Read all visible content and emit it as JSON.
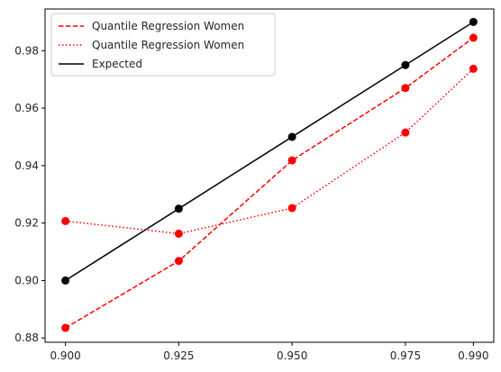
{
  "chart_data": {
    "type": "line",
    "x": [
      0.9,
      0.925,
      0.95,
      0.975,
      0.99
    ],
    "x_tick_labels": [
      "0.900",
      "0.925",
      "0.950",
      "0.975",
      "0.990"
    ],
    "y_ticks": [
      0.88,
      0.9,
      0.92,
      0.94,
      0.96,
      0.98
    ],
    "y_tick_labels": [
      "0.88",
      "0.90",
      "0.92",
      "0.94",
      "0.96",
      "0.98"
    ],
    "xlim": [
      0.8955,
      0.9945
    ],
    "ylim": [
      0.8785,
      0.9945
    ],
    "grid": false,
    "legend_position": "upper-left",
    "series": [
      {
        "name": "Quantile Regression Women",
        "values": [
          0.8835,
          0.9068,
          0.9418,
          0.967,
          0.9845
        ],
        "color": "#ff0000",
        "linestyle": "dashed",
        "marker": "circle"
      },
      {
        "name": "Quantile Regression Women",
        "values": [
          0.9207,
          0.9163,
          0.9252,
          0.9515,
          0.9737
        ],
        "color": "#ff0000",
        "linestyle": "dotted",
        "marker": "circle"
      },
      {
        "name": "Expected",
        "values": [
          0.9,
          0.925,
          0.95,
          0.975,
          0.99
        ],
        "color": "#000000",
        "linestyle": "solid",
        "marker": "circle"
      }
    ]
  }
}
